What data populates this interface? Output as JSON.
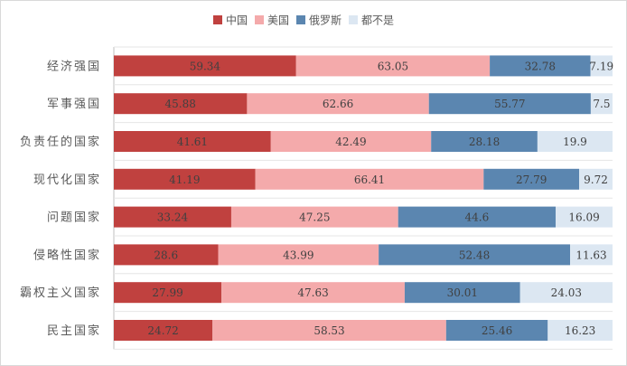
{
  "chart_data": {
    "type": "bar",
    "orientation": "horizontal",
    "stacked": true,
    "title": "",
    "xlabel": "",
    "ylabel": "",
    "legend_position": "top",
    "grid": false,
    "categories": [
      "经济强国",
      "军事强国",
      "负责任的国家",
      "现代化国家",
      "问题国家",
      "侵略性国家",
      "霸权主义国家",
      "民主国家"
    ],
    "series": [
      {
        "name": "中国",
        "color": "#c0413f",
        "values": [
          59.34,
          45.88,
          41.61,
          41.19,
          33.24,
          28.6,
          27.99,
          24.72
        ]
      },
      {
        "name": "美国",
        "color": "#f4aaab",
        "values": [
          63.05,
          62.66,
          42.49,
          66.41,
          47.25,
          43.99,
          47.63,
          58.53
        ]
      },
      {
        "name": "俄罗斯",
        "color": "#5b86b0",
        "values": [
          32.78,
          55.77,
          28.18,
          27.79,
          44.6,
          52.48,
          30.01,
          25.46
        ]
      },
      {
        "name": "都不是",
        "color": "#dce7f2",
        "values": [
          7.19,
          7.5,
          19.9,
          9.72,
          16.09,
          11.63,
          24.03,
          16.23
        ]
      }
    ],
    "value_labels": [
      [
        "59.34",
        "45.88",
        "41.61",
        "41.19",
        "33.24",
        "28.6",
        "27.99",
        "24.72"
      ],
      [
        "63.05",
        "62.66",
        "42.49",
        "66.41",
        "47.25",
        "43.99",
        "47.63",
        "58.53"
      ],
      [
        "32.78",
        "55.77",
        "28.18",
        "27.79",
        "44.6",
        "52.48",
        "30.01",
        "25.46"
      ],
      [
        "7.19",
        "7.5",
        "19.9",
        "9.72",
        "16.09",
        "11.63",
        "24.03",
        "16.23"
      ]
    ],
    "label_color_on_light": "#404040",
    "label_color_on_dark": "#ffffff"
  }
}
